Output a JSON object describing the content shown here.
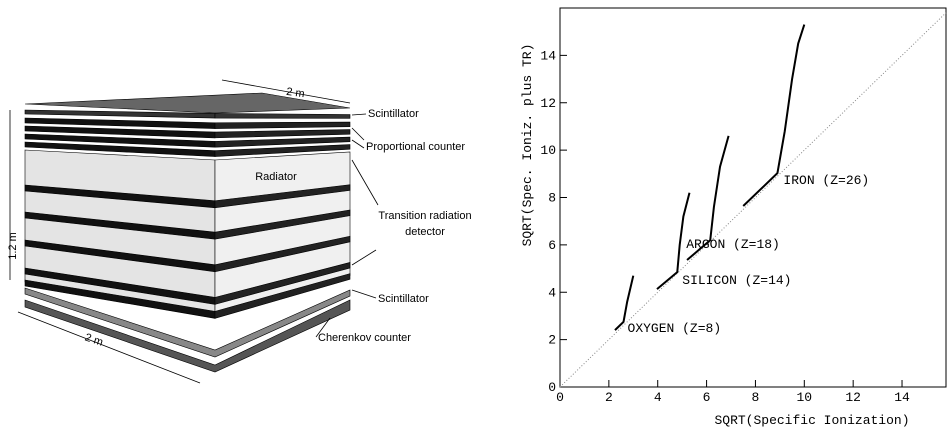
{
  "diagram": {
    "labels": [
      "2 m",
      "1.2 m",
      "2 m",
      "Scintillator",
      "Proportional counter",
      "Radiator",
      "Transition radiation",
      "detector",
      "Scintillator",
      "Cherenkov counter"
    ]
  },
  "chart_data": {
    "type": "line",
    "xlabel": "SQRT(Specific Ionization)",
    "ylabel": "SQRT(Spec. Ioniz. plus TR)",
    "xlim": [
      0,
      15.8
    ],
    "ylim": [
      0,
      16
    ],
    "xticks": [
      0,
      2,
      4,
      6,
      8,
      10,
      12,
      14
    ],
    "yticks": [
      0,
      2,
      4,
      6,
      8,
      10,
      12,
      14
    ],
    "diagonal": true,
    "series": [
      {
        "name": "OXYGEN (Z=8)",
        "color": "#000000",
        "x": [
          2.25,
          2.6,
          2.75,
          3.0
        ],
        "values": [
          2.4,
          2.75,
          3.6,
          4.7
        ]
      },
      {
        "name": "SILICON (Z=14)",
        "color": "#000000",
        "x": [
          3.97,
          4.8,
          4.9,
          5.05,
          5.3
        ],
        "values": [
          4.13,
          4.85,
          6,
          7.2,
          8.2
        ]
      },
      {
        "name": "ARGON (Z=18)",
        "color": "#000000",
        "x": [
          5.2,
          6.15,
          6.3,
          6.55,
          6.9
        ],
        "values": [
          5.36,
          6.2,
          7.6,
          9.3,
          10.6
        ]
      },
      {
        "name": "IRON (Z=26)",
        "color": "#000000",
        "x": [
          7.5,
          8.9,
          9.2,
          9.5,
          9.75,
          10.0
        ],
        "values": [
          7.64,
          9.03,
          10.8,
          13,
          14.5,
          15.3
        ]
      }
    ]
  }
}
